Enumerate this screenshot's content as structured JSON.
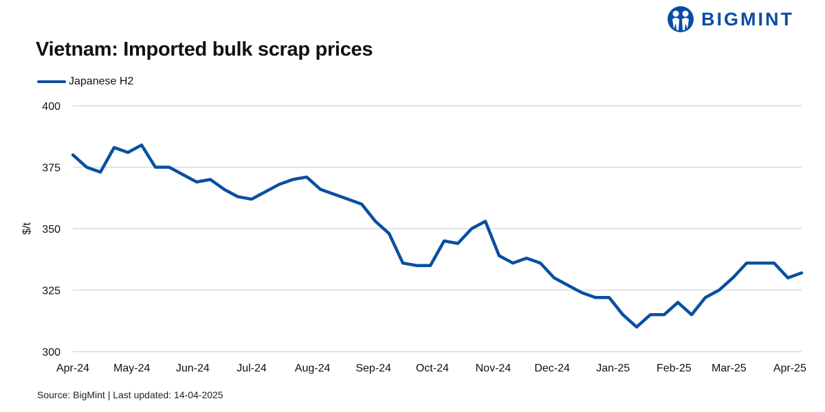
{
  "logo": {
    "text": "BIGMINT",
    "color": "#0a4da2"
  },
  "source": "Source: BigMint | Last updated: 14-04-2025",
  "chart_data": {
    "type": "line",
    "title": "Vietnam: Imported bulk scrap prices",
    "xlabel": "",
    "ylabel": "$/t",
    "ylim": [
      300,
      400
    ],
    "yticks": [
      300,
      325,
      350,
      375,
      400
    ],
    "xlim": [
      "2024-04-01",
      "2025-04-07"
    ],
    "xticks": [
      {
        "date": "2024-04-01",
        "label": "Apr-24"
      },
      {
        "date": "2024-05-01",
        "label": "May-24"
      },
      {
        "date": "2024-06-01",
        "label": "Jun-24"
      },
      {
        "date": "2024-07-01",
        "label": "Jul-24"
      },
      {
        "date": "2024-08-01",
        "label": "Aug-24"
      },
      {
        "date": "2024-09-01",
        "label": "Sep-24"
      },
      {
        "date": "2024-10-01",
        "label": "Oct-24"
      },
      {
        "date": "2024-11-01",
        "label": "Nov-24"
      },
      {
        "date": "2024-12-01",
        "label": "Dec-24"
      },
      {
        "date": "2025-01-01",
        "label": "Jan-25"
      },
      {
        "date": "2025-02-01",
        "label": "Feb-25"
      },
      {
        "date": "2025-03-01",
        "label": "Mar-25"
      },
      {
        "date": "2025-04-01",
        "label": "Apr-25"
      }
    ],
    "grid": "horizontal",
    "legend_position": "top-left",
    "series": [
      {
        "name": "Japanese H2",
        "color": "#0a4fa0",
        "frequency": "weekly",
        "start": "2024-04-01",
        "values": [
          380,
          375,
          373,
          383,
          381,
          384,
          375,
          375,
          372,
          369,
          370,
          366,
          363,
          362,
          365,
          368,
          370,
          371,
          366,
          364,
          362,
          360,
          353,
          348,
          336,
          335,
          335,
          345,
          344,
          350,
          353,
          339,
          336,
          338,
          336,
          330,
          327,
          324,
          322,
          322,
          315,
          310,
          315,
          315,
          320,
          315,
          322,
          325,
          330,
          336,
          336,
          336,
          330,
          332
        ]
      }
    ]
  }
}
